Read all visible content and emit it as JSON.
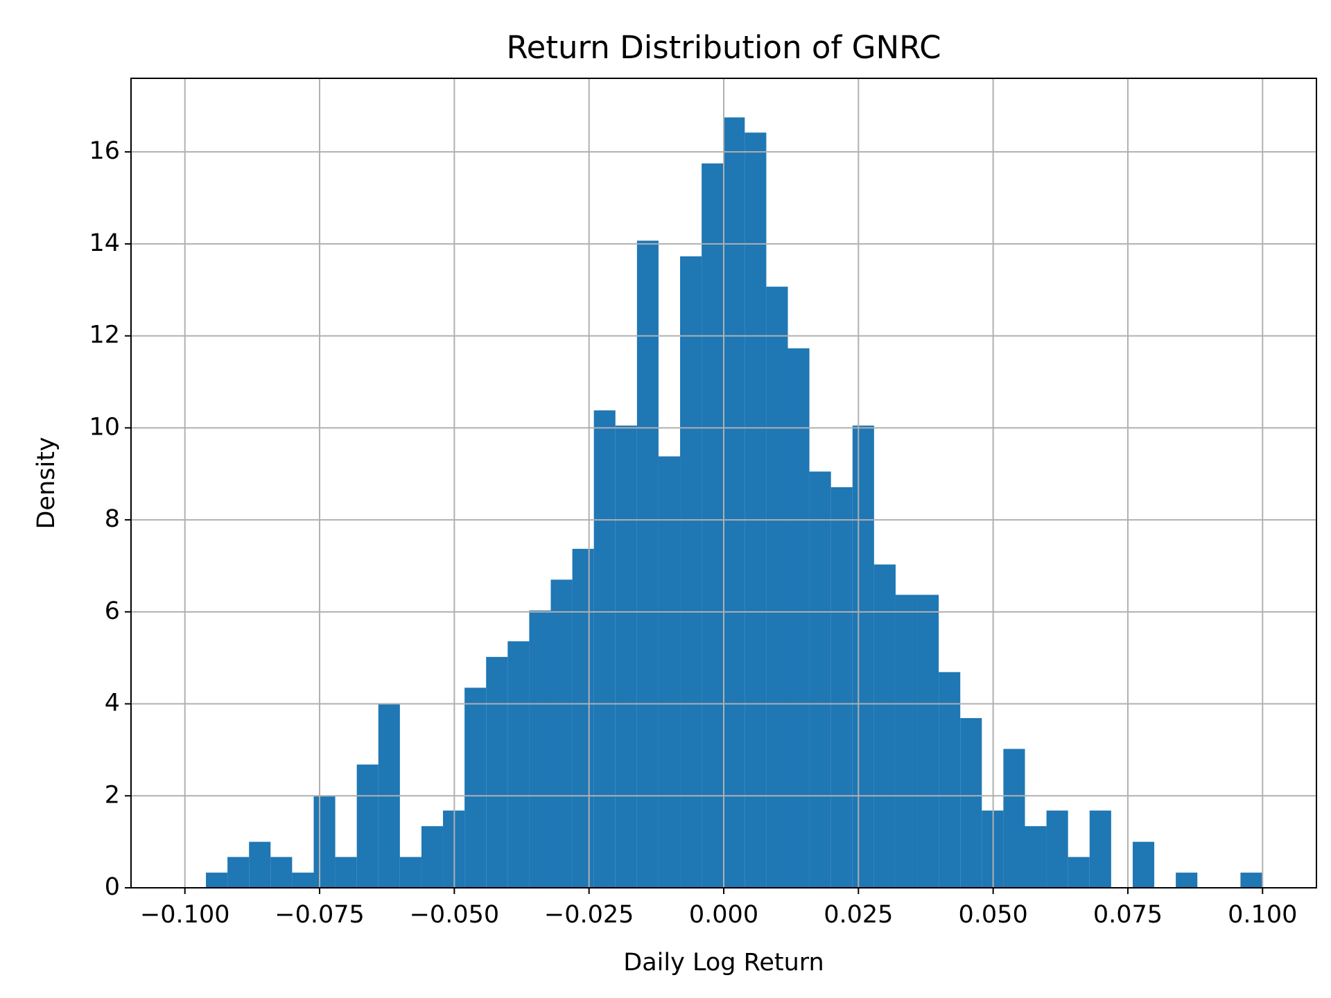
{
  "chart_data": {
    "type": "histogram",
    "title": "Return Distribution of GNRC",
    "x_label": "Daily Log Return",
    "y_label": "Density",
    "color": "#1f77b4",
    "grid": true,
    "bins": [
      -0.0961,
      -0.0921,
      -0.0881,
      -0.0841,
      -0.0801,
      -0.0761,
      -0.0721,
      -0.0681,
      -0.0641,
      -0.0601,
      -0.0561,
      -0.0521,
      -0.0481,
      -0.0441,
      -0.0401,
      -0.0361,
      -0.0321,
      -0.0281,
      -0.0241,
      -0.0201,
      -0.0161,
      -0.0121,
      -0.0081,
      -0.0041,
      -0.0001,
      0.0039,
      0.0079,
      0.0119,
      0.0159,
      0.0199,
      0.0239,
      0.0279,
      0.0319,
      0.0359,
      0.0399,
      0.0439,
      0.0479,
      0.0519,
      0.0559,
      0.0599,
      0.0639,
      0.0679,
      0.0719,
      0.0759,
      0.0799,
      0.0839,
      0.0879,
      0.0919,
      0.0959,
      0.0999
    ],
    "values": [
      0.33,
      0.67,
      1.0,
      0.67,
      0.33,
      2.0,
      0.67,
      2.68,
      4.0,
      0.67,
      1.34,
      1.68,
      4.35,
      5.02,
      5.36,
      6.03,
      6.7,
      7.37,
      10.38,
      10.05,
      14.07,
      9.38,
      13.73,
      15.75,
      16.75,
      16.42,
      13.07,
      11.73,
      9.05,
      8.71,
      10.05,
      7.03,
      6.37,
      6.37,
      4.69,
      3.69,
      1.68,
      3.02,
      1.34,
      1.68,
      0.67,
      1.68,
      0,
      1.0,
      0,
      0.33,
      0,
      0,
      0.33
    ],
    "xlim": [
      -0.11,
      0.11
    ],
    "ylim": [
      0,
      17.6
    ],
    "xticks": [
      {
        "value": -0.1,
        "label": "−0.100"
      },
      {
        "value": -0.075,
        "label": "−0.075"
      },
      {
        "value": -0.05,
        "label": "−0.050"
      },
      {
        "value": -0.025,
        "label": "−0.025"
      },
      {
        "value": 0,
        "label": "0.000"
      },
      {
        "value": 0.025,
        "label": "0.025"
      },
      {
        "value": 0.05,
        "label": "0.050"
      },
      {
        "value": 0.075,
        "label": "0.075"
      },
      {
        "value": 0.1,
        "label": "0.100"
      }
    ],
    "yticks": [
      0,
      2,
      4,
      6,
      8,
      10,
      12,
      14,
      16
    ]
  }
}
